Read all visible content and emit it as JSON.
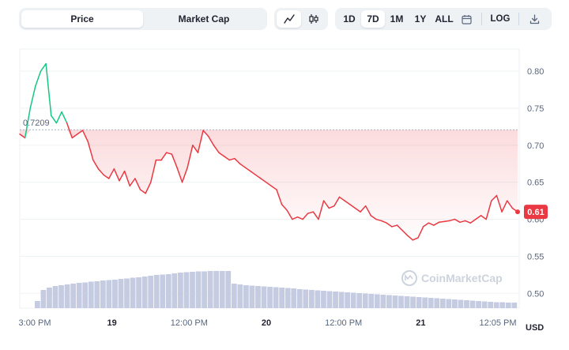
{
  "toggle": {
    "price_label": "Price",
    "market_cap_label": "Market Cap",
    "active": "Price"
  },
  "chart_type_icons": [
    "line-chart-icon",
    "candlestick-icon"
  ],
  "ranges": [
    "1D",
    "7D",
    "1M",
    "1Y",
    "ALL"
  ],
  "active_range": "7D",
  "log_label": "LOG",
  "colors": {
    "down": "#ea3943",
    "up": "#16c784",
    "volume": "#c5cbe0",
    "grid": "#eff2f5"
  },
  "chart_data": {
    "type": "line",
    "title": "",
    "ylabel": "",
    "currency_label": "USD",
    "ylim": [
      0.48,
      0.83
    ],
    "y_ticks": [
      0.5,
      0.55,
      0.6,
      0.65,
      0.7,
      0.75,
      0.8
    ],
    "x_tick_labels": [
      "3:00 PM",
      "19",
      "12:00 PM",
      "20",
      "12:00 PM",
      "21",
      "12:05 PM"
    ],
    "reference_price": 0.7209,
    "reference_label": "0.7209",
    "current_price": 0.61,
    "current_label": "0.61",
    "watermark": "CoinMarketCap",
    "series": [
      {
        "values": [
          0.715,
          0.71,
          0.75,
          0.78,
          0.8,
          0.81,
          0.74,
          0.73,
          0.745,
          0.73,
          0.71,
          0.715,
          0.72,
          0.705,
          0.68,
          0.668,
          0.66,
          0.655,
          0.668,
          0.652,
          0.665,
          0.645,
          0.655,
          0.64,
          0.635,
          0.65,
          0.68,
          0.68,
          0.69,
          0.688,
          0.67,
          0.65,
          0.67,
          0.7,
          0.69,
          0.72,
          0.712,
          0.7,
          0.69,
          0.685,
          0.68,
          0.682,
          0.675,
          0.67,
          0.665,
          0.66,
          0.655,
          0.65,
          0.645,
          0.64,
          0.62,
          0.612,
          0.6,
          0.603,
          0.6,
          0.608,
          0.61,
          0.6,
          0.625,
          0.615,
          0.618,
          0.63,
          0.625,
          0.62,
          0.615,
          0.61,
          0.618,
          0.605,
          0.6,
          0.598,
          0.595,
          0.59,
          0.592,
          0.585,
          0.578,
          0.572,
          0.575,
          0.59,
          0.595,
          0.592,
          0.596,
          0.597,
          0.598,
          0.6,
          0.596,
          0.598,
          0.595,
          0.6,
          0.605,
          0.6,
          0.625,
          0.632,
          0.61,
          0.625,
          0.615,
          0.61
        ]
      }
    ],
    "volume": [
      0.18,
      0.46,
      0.52,
      0.56,
      0.58,
      0.6,
      0.62,
      0.64,
      0.65,
      0.67,
      0.68,
      0.7,
      0.71,
      0.72,
      0.74,
      0.75,
      0.77,
      0.78,
      0.8,
      0.82,
      0.84,
      0.85,
      0.86,
      0.88,
      0.9,
      0.91,
      0.92,
      0.93,
      0.93,
      0.94,
      0.94,
      0.94,
      0.94,
      0.62,
      0.6,
      0.58,
      0.57,
      0.56,
      0.55,
      0.54,
      0.53,
      0.52,
      0.51,
      0.5,
      0.48,
      0.47,
      0.46,
      0.45,
      0.44,
      0.43,
      0.42,
      0.41,
      0.4,
      0.39,
      0.38,
      0.37,
      0.36,
      0.35,
      0.34,
      0.33,
      0.32,
      0.31,
      0.3,
      0.29,
      0.28,
      0.27,
      0.26,
      0.25,
      0.24,
      0.23,
      0.22,
      0.21,
      0.2,
      0.19,
      0.18,
      0.17,
      0.16,
      0.15,
      0.15,
      0.14,
      0.14
    ]
  }
}
